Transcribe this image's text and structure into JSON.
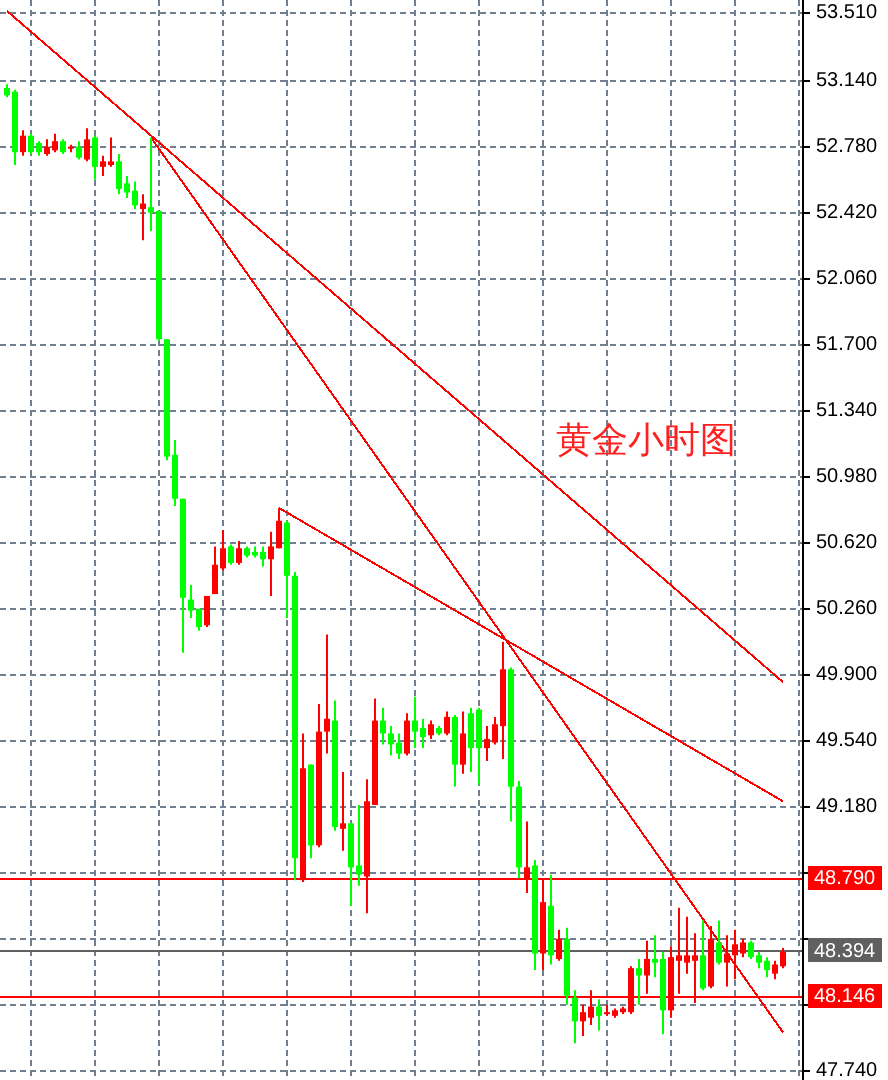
{
  "chart_data": {
    "type": "candlestick",
    "title": "黄金小时图",
    "tick_labels": "y",
    "grid": true,
    "categories": [
      null,
      null,
      null,
      null,
      null,
      null,
      null,
      null,
      null,
      null,
      null,
      null,
      null,
      null,
      null,
      null,
      null,
      null,
      null,
      null,
      null,
      null,
      null,
      null,
      null,
      null,
      null,
      null,
      null,
      null,
      null,
      null,
      null,
      null,
      null,
      null,
      null,
      null,
      null,
      null,
      null,
      null,
      null,
      null,
      null,
      null,
      null,
      null,
      null,
      null,
      null,
      null,
      null,
      null,
      null,
      null,
      null,
      null,
      null,
      null,
      null,
      null,
      null,
      null,
      null,
      null,
      null,
      null,
      null,
      null,
      null,
      null,
      null,
      null,
      null,
      null,
      null,
      null,
      null,
      null,
      null,
      null,
      null,
      null,
      null,
      null,
      null,
      null,
      null,
      null,
      null,
      null,
      null,
      null,
      null,
      null,
      null,
      null
    ],
    "ohlc": [
      [
        53.1,
        53.12,
        53.05,
        53.06
      ],
      [
        53.08,
        53.09,
        52.68,
        52.75
      ],
      [
        52.75,
        52.87,
        52.73,
        52.84
      ],
      [
        52.84,
        52.85,
        52.74,
        52.75
      ],
      [
        52.8,
        52.81,
        52.73,
        52.75
      ],
      [
        52.74,
        52.82,
        52.73,
        52.78
      ],
      [
        52.76,
        52.85,
        52.75,
        52.81
      ],
      [
        52.81,
        52.82,
        52.74,
        52.75
      ],
      [
        52.77,
        52.79,
        52.75,
        52.78
      ],
      [
        52.78,
        52.81,
        52.71,
        52.72
      ],
      [
        52.71,
        52.88,
        52.7,
        52.82
      ],
      [
        52.83,
        52.84,
        52.6,
        52.67
      ],
      [
        52.67,
        52.73,
        52.62,
        52.7
      ],
      [
        52.68,
        52.83,
        52.67,
        52.7
      ],
      [
        52.7,
        52.74,
        52.52,
        52.55
      ],
      [
        52.58,
        52.62,
        52.5,
        52.53
      ],
      [
        52.54,
        52.59,
        52.44,
        52.46
      ],
      [
        52.44,
        52.52,
        52.27,
        52.47
      ],
      [
        52.45,
        52.83,
        52.32,
        52.42
      ],
      [
        52.43,
        52.43,
        51.72,
        51.73
      ],
      [
        51.73,
        51.73,
        51.07,
        51.09
      ],
      [
        51.1,
        51.18,
        50.82,
        50.86
      ],
      [
        50.86,
        50.86,
        50.02,
        50.32
      ],
      [
        50.31,
        50.39,
        50.21,
        50.25
      ],
      [
        50.26,
        50.26,
        50.14,
        50.16
      ],
      [
        50.17,
        50.33,
        50.16,
        50.33
      ],
      [
        50.34,
        50.6,
        50.34,
        50.5
      ],
      [
        50.48,
        50.69,
        50.47,
        50.59
      ],
      [
        50.6,
        50.61,
        50.5,
        50.51
      ],
      [
        50.51,
        50.63,
        50.5,
        50.59
      ],
      [
        50.59,
        50.6,
        50.54,
        50.55
      ],
      [
        50.57,
        50.6,
        50.54,
        50.55
      ],
      [
        50.57,
        50.6,
        50.49,
        50.53
      ],
      [
        50.53,
        50.68,
        50.33,
        50.6
      ],
      [
        50.59,
        50.81,
        50.59,
        50.74
      ],
      [
        50.73,
        50.74,
        50.21,
        50.44
      ],
      [
        50.44,
        50.46,
        48.78,
        48.9
      ],
      [
        48.78,
        49.58,
        48.77,
        49.39
      ],
      [
        49.41,
        49.41,
        48.9,
        48.97
      ],
      [
        48.97,
        49.74,
        48.96,
        49.59
      ],
      [
        49.59,
        50.12,
        49.47,
        49.66
      ],
      [
        49.65,
        49.76,
        49.05,
        49.07
      ],
      [
        49.06,
        49.37,
        48.94,
        49.09
      ],
      [
        49.09,
        49.09,
        48.64,
        48.85
      ],
      [
        48.86,
        49.19,
        48.75,
        48.81
      ],
      [
        48.8,
        49.33,
        48.6,
        49.21
      ],
      [
        49.19,
        49.77,
        49.19,
        49.65
      ],
      [
        49.65,
        49.72,
        49.52,
        49.58
      ],
      [
        49.58,
        49.62,
        49.46,
        49.52
      ],
      [
        49.53,
        49.58,
        49.44,
        49.47
      ],
      [
        49.47,
        49.69,
        49.46,
        49.65
      ],
      [
        49.65,
        49.78,
        49.5,
        49.59
      ],
      [
        49.61,
        49.66,
        49.5,
        49.56
      ],
      [
        49.57,
        49.65,
        49.55,
        49.63
      ],
      [
        49.61,
        49.62,
        49.57,
        49.58
      ],
      [
        49.58,
        49.7,
        49.57,
        49.67
      ],
      [
        49.67,
        49.68,
        49.29,
        49.41
      ],
      [
        49.41,
        49.7,
        49.36,
        49.58
      ],
      [
        49.69,
        49.72,
        49.37,
        49.5
      ],
      [
        49.71,
        49.72,
        49.3,
        49.5
      ],
      [
        49.5,
        49.62,
        49.43,
        49.55
      ],
      [
        49.53,
        49.67,
        49.52,
        49.63
      ],
      [
        49.62,
        50.08,
        49.44,
        49.93
      ],
      [
        49.93,
        49.94,
        49.1,
        49.29
      ],
      [
        49.29,
        49.32,
        48.79,
        48.85
      ],
      [
        48.79,
        49.1,
        48.71,
        48.85
      ],
      [
        48.86,
        48.89,
        48.29,
        48.38
      ],
      [
        48.38,
        48.79,
        48.29,
        48.66
      ],
      [
        48.64,
        48.81,
        48.32,
        48.37
      ],
      [
        48.35,
        48.51,
        48.34,
        48.46
      ],
      [
        48.46,
        48.52,
        48.1,
        48.15
      ],
      [
        48.14,
        48.18,
        47.89,
        48.01
      ],
      [
        48.01,
        48.1,
        47.93,
        48.06
      ],
      [
        48.03,
        48.18,
        47.99,
        48.09
      ],
      [
        48.09,
        48.13,
        47.96,
        48.04
      ],
      [
        48.05,
        48.1,
        48.04,
        48.06
      ],
      [
        48.04,
        48.08,
        48.03,
        48.07
      ],
      [
        48.06,
        48.09,
        48.05,
        48.08
      ],
      [
        48.06,
        48.31,
        48.05,
        48.3
      ],
      [
        48.3,
        48.35,
        48.1,
        48.26
      ],
      [
        48.26,
        48.45,
        48.16,
        48.35
      ],
      [
        48.35,
        48.48,
        48.25,
        48.33
      ],
      [
        48.35,
        48.39,
        47.94,
        48.07
      ],
      [
        48.07,
        48.42,
        48.03,
        48.36
      ],
      [
        48.34,
        48.63,
        48.16,
        48.37
      ],
      [
        48.33,
        48.58,
        48.27,
        48.37
      ],
      [
        48.34,
        48.49,
        48.11,
        48.37
      ],
      [
        48.37,
        48.56,
        48.18,
        48.19
      ],
      [
        48.2,
        48.53,
        48.19,
        48.46
      ],
      [
        48.44,
        48.56,
        48.32,
        48.33
      ],
      [
        48.33,
        48.48,
        48.2,
        48.38
      ],
      [
        48.37,
        48.51,
        48.24,
        48.43
      ],
      [
        48.38,
        48.46,
        48.36,
        48.44
      ],
      [
        48.44,
        48.45,
        48.35,
        48.36
      ],
      [
        48.37,
        48.39,
        48.3,
        48.33
      ],
      [
        48.34,
        48.36,
        48.25,
        48.29
      ],
      [
        48.27,
        48.34,
        48.24,
        48.32
      ],
      [
        48.31,
        48.41,
        48.3,
        48.39
      ]
    ],
    "colors": [
      "#00ff00",
      "#00ff00",
      "#ff0000",
      "#00ff00",
      "#00ff00",
      "#ff0000",
      "#ff0000",
      "#00ff00",
      "#ff0000",
      "#00ff00",
      "#ff0000",
      "#00ff00",
      "#ff0000",
      "#ff0000",
      "#00ff00",
      "#00ff00",
      "#00ff00",
      "#ff0000",
      "#00ff00",
      "#00ff00",
      "#00ff00",
      "#00ff00",
      "#00ff00",
      "#00ff00",
      "#00ff00",
      "#ff0000",
      "#ff0000",
      "#ff0000",
      "#00ff00",
      "#ff0000",
      "#00ff00",
      "#00ff00",
      "#00ff00",
      "#ff0000",
      "#ff0000",
      "#00ff00",
      "#00ff00",
      "#ff0000",
      "#00ff00",
      "#ff0000",
      "#ff0000",
      "#00ff00",
      "#ff0000",
      "#00ff00",
      "#00ff00",
      "#ff0000",
      "#ff0000",
      "#00ff00",
      "#00ff00",
      "#00ff00",
      "#ff0000",
      "#00ff00",
      "#00ff00",
      "#ff0000",
      "#00ff00",
      "#ff0000",
      "#00ff00",
      "#ff0000",
      "#00ff00",
      "#00ff00",
      "#ff0000",
      "#ff0000",
      "#ff0000",
      "#00ff00",
      "#00ff00",
      "#ff0000",
      "#00ff00",
      "#ff0000",
      "#00ff00",
      "#ff0000",
      "#00ff00",
      "#00ff00",
      "#ff0000",
      "#ff0000",
      "#00ff00",
      "#ff0000",
      "#ff0000",
      "#ff0000",
      "#ff0000",
      "#00ff00",
      "#ff0000",
      "#00ff00",
      "#00ff00",
      "#ff0000",
      "#ff0000",
      "#ff0000",
      "#ff0000",
      "#00ff00",
      "#ff0000",
      "#00ff00",
      "#ff0000",
      "#ff0000",
      "#ff0000",
      "#00ff00",
      "#00ff00",
      "#00ff00",
      "#ff0000",
      "#ff0000"
    ],
    "series": [
      {
        "type": "line",
        "color": "#ff0000",
        "values": [
          53.52,
          null,
          null,
          null,
          null,
          null,
          null,
          null,
          null,
          null,
          null,
          null,
          null,
          null,
          null,
          null,
          null,
          null,
          null,
          null,
          null,
          null,
          null,
          null,
          null,
          null,
          null,
          null,
          null,
          null,
          null,
          null,
          null,
          null,
          null,
          null,
          null,
          null,
          null,
          null,
          null,
          null,
          null,
          null,
          null,
          null,
          null,
          null,
          null,
          null,
          null,
          null,
          null,
          null,
          null,
          null,
          null,
          null,
          null,
          null,
          null,
          null,
          null,
          null,
          null,
          null,
          null,
          null,
          null,
          null,
          null,
          null,
          null,
          null,
          null,
          null,
          null,
          null,
          null,
          null,
          null,
          null,
          null,
          null,
          null,
          null,
          null,
          null,
          null,
          null,
          null,
          null,
          null,
          null,
          null,
          null,
          null,
          49.86
        ]
      },
      {
        "type": "line",
        "color": "#ff0000",
        "values": [
          null,
          null,
          null,
          null,
          null,
          null,
          null,
          null,
          null,
          null,
          null,
          null,
          null,
          null,
          null,
          null,
          null,
          null,
          52.83,
          null,
          null,
          null,
          null,
          null,
          null,
          null,
          null,
          null,
          null,
          null,
          null,
          null,
          null,
          null,
          null,
          null,
          null,
          null,
          null,
          null,
          null,
          null,
          null,
          null,
          null,
          null,
          null,
          null,
          null,
          null,
          null,
          null,
          null,
          null,
          null,
          null,
          null,
          null,
          null,
          null,
          null,
          null,
          null,
          null,
          null,
          null,
          null,
          null,
          null,
          null,
          null,
          null,
          null,
          null,
          null,
          null,
          null,
          null,
          null,
          null,
          null,
          null,
          null,
          null,
          null,
          null,
          null,
          null,
          null,
          null,
          null,
          null,
          null,
          null,
          null,
          null,
          null,
          47.95
        ]
      },
      {
        "type": "line",
        "color": "#ff0000",
        "values": [
          null,
          null,
          null,
          null,
          null,
          null,
          null,
          null,
          null,
          null,
          null,
          null,
          null,
          null,
          null,
          null,
          null,
          null,
          null,
          null,
          null,
          null,
          null,
          null,
          null,
          null,
          null,
          null,
          null,
          null,
          null,
          null,
          null,
          null,
          50.81,
          null,
          null,
          null,
          null,
          null,
          null,
          null,
          null,
          null,
          null,
          null,
          null,
          null,
          null,
          null,
          null,
          null,
          null,
          null,
          null,
          null,
          null,
          null,
          null,
          null,
          null,
          null,
          null,
          null,
          null,
          null,
          null,
          null,
          null,
          null,
          null,
          null,
          null,
          null,
          null,
          null,
          null,
          null,
          null,
          null,
          null,
          null,
          null,
          null,
          null,
          null,
          null,
          null,
          null,
          null,
          null,
          null,
          null,
          null,
          null,
          null,
          null,
          49.21
        ]
      }
    ],
    "ylim": [
      47.69,
      53.58
    ],
    "yticks": [
      {
        "value": 53.51,
        "label": "53.510"
      },
      {
        "value": 53.14,
        "label": "53.140"
      },
      {
        "value": 52.78,
        "label": "52.780"
      },
      {
        "value": 52.42,
        "label": "52.420"
      },
      {
        "value": 52.06,
        "label": "52.060"
      },
      {
        "value": 51.7,
        "label": "51.700"
      },
      {
        "value": 51.34,
        "label": "51.340"
      },
      {
        "value": 50.98,
        "label": "50.980"
      },
      {
        "value": 50.62,
        "label": "50.620"
      },
      {
        "value": 50.26,
        "label": "50.260"
      },
      {
        "value": 49.9,
        "label": "49.900"
      },
      {
        "value": 49.54,
        "label": "49.540"
      },
      {
        "value": 49.18,
        "label": "49.180"
      },
      {
        "value": 48.82,
        "label": null
      },
      {
        "value": 48.46,
        "label": null
      },
      {
        "value": 48.1,
        "label": null
      },
      {
        "value": 47.74,
        "label": "47.740"
      }
    ],
    "ref_lines": [
      {
        "axis": "y",
        "value": 48.79,
        "label": "48.790",
        "color": "#ff0000"
      },
      {
        "axis": "y",
        "value": 48.394,
        "label": "48.394",
        "color": "#606060"
      },
      {
        "axis": "y",
        "value": 48.146,
        "label": "48.146",
        "color": "#ff0000"
      }
    ]
  }
}
